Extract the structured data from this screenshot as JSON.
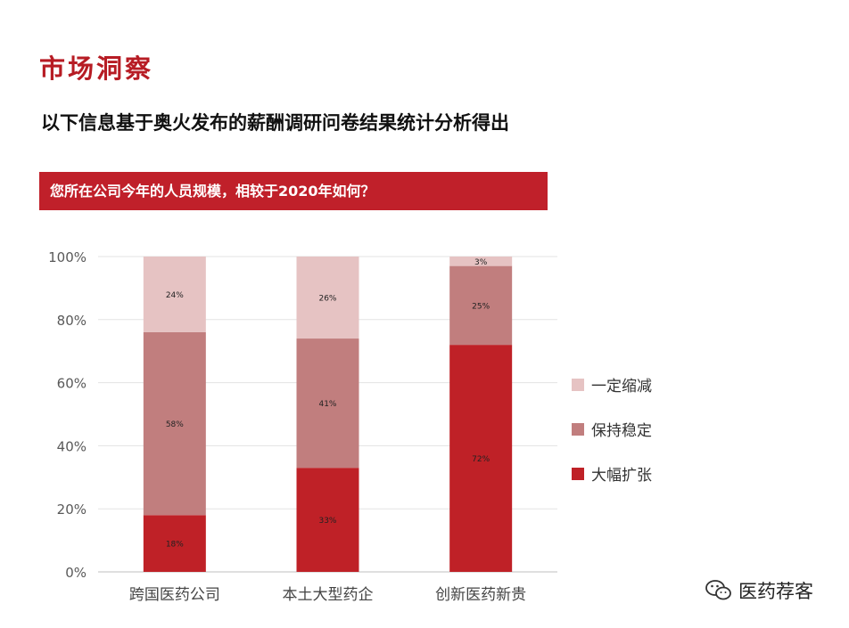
{
  "header": {
    "title": "市场洞察",
    "subtitle": "以下信息基于奥火发布的薪酬调研问卷结果统计分析得出",
    "question": "您所在公司今年的人员规模，相较于2020年如何？"
  },
  "watermark": {
    "text": "医药荐客",
    "icon": "wechat-icon"
  },
  "chart_data": {
    "type": "bar",
    "stacked": true,
    "categories": [
      "跨国医药公司",
      "本土大型药企",
      "创新医药新贵"
    ],
    "series": [
      {
        "name": "大幅扩张",
        "values": [
          18,
          33,
          72
        ],
        "labels": [
          "18%",
          "33%",
          "72%"
        ],
        "color": "#bf2127"
      },
      {
        "name": "保持稳定",
        "values": [
          58,
          41,
          25
        ],
        "labels": [
          "58%",
          "41%",
          "25%"
        ],
        "color": "#c17e7e"
      },
      {
        "name": "一定缩减",
        "values": [
          24,
          26,
          3
        ],
        "labels": [
          "24%",
          "26%",
          "3%"
        ],
        "color": "#e6c3c3"
      }
    ],
    "yticks": [
      "0%",
      "20%",
      "40%",
      "60%",
      "80%",
      "100%"
    ],
    "ylim": [
      0,
      100
    ],
    "grid": true,
    "legend": "right"
  }
}
